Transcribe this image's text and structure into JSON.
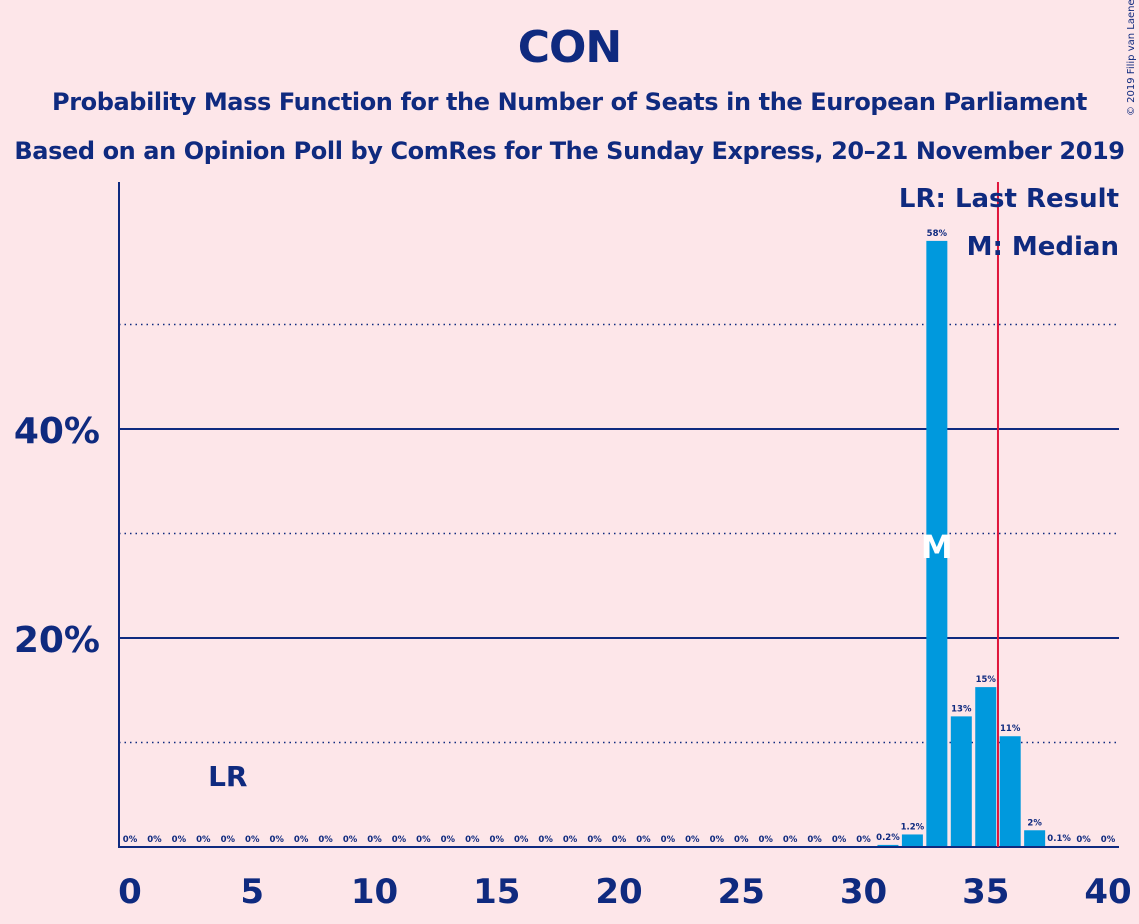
{
  "title": "CON",
  "subtitle_1": "Probability Mass Function for the Number of Seats in the European Parliament",
  "subtitle_2": "Based on an Opinion Poll by ComRes for The Sunday Express, 20–21 November 2019",
  "copyright": "© 2019 Filip van Laenen",
  "legend": {
    "last_result": "LR: Last Result",
    "median": "M: Median"
  },
  "markers": {
    "last_result_label": "LR",
    "median_label": "M"
  },
  "colors": {
    "background": "#fde6e9",
    "bar": "#0099dd",
    "text": "#0f2a7f",
    "majority_line": "#e0153b"
  },
  "chart_data": {
    "type": "bar",
    "title": "CON",
    "xlabel": "",
    "ylabel": "",
    "x": [
      0,
      1,
      2,
      3,
      4,
      5,
      6,
      7,
      8,
      9,
      10,
      11,
      12,
      13,
      14,
      15,
      16,
      17,
      18,
      19,
      20,
      21,
      22,
      23,
      24,
      25,
      26,
      27,
      28,
      29,
      30,
      31,
      32,
      33,
      34,
      35,
      36,
      37,
      38,
      39,
      40
    ],
    "values": [
      0,
      0,
      0,
      0,
      0,
      0,
      0,
      0,
      0,
      0,
      0,
      0,
      0,
      0,
      0,
      0,
      0,
      0,
      0,
      0,
      0,
      0,
      0,
      0,
      0,
      0,
      0,
      0,
      0,
      0,
      0,
      0.2,
      1.2,
      58,
      12.5,
      15.3,
      10.6,
      1.6,
      0.1,
      0,
      0
    ],
    "data_labels": [
      "0%",
      "0%",
      "0%",
      "0%",
      "0%",
      "0%",
      "0%",
      "0%",
      "0%",
      "0%",
      "0%",
      "0%",
      "0%",
      "0%",
      "0%",
      "0%",
      "0%",
      "0%",
      "0%",
      "0%",
      "0%",
      "0%",
      "0%",
      "0%",
      "0%",
      "0%",
      "0%",
      "0%",
      "0%",
      "0%",
      "0%",
      "0.2%",
      "1.2%",
      "58%",
      "13%",
      "15%",
      "11%",
      "2%",
      "0.1%",
      "0%",
      "0%"
    ],
    "x_ticks": [
      0,
      5,
      10,
      15,
      20,
      25,
      30,
      35,
      40
    ],
    "x_tick_labels": [
      "0",
      "5",
      "10",
      "15",
      "20",
      "25",
      "30",
      "35",
      "40"
    ],
    "y_ticks": [
      20,
      40
    ],
    "y_tick_labels": [
      "20%",
      "40%"
    ],
    "y_dotted_gridlines": [
      10,
      30,
      50
    ],
    "ylim": [
      0,
      63
    ],
    "xlim": [
      -0.5,
      40.5
    ],
    "last_result_seat": 4,
    "median_seat": 33,
    "majority_line_x": 35.5
  }
}
